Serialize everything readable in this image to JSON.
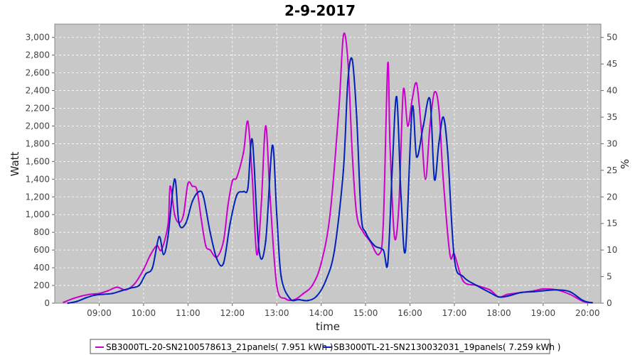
{
  "chart_data": {
    "type": "line",
    "title": "2-9-2017",
    "xlabel": "time",
    "ylabel": "Watt",
    "y2label": "%",
    "ylim": [
      0,
      3150
    ],
    "y2lim": [
      0,
      52.5
    ],
    "yticks": [
      0,
      200,
      400,
      600,
      800,
      1000,
      1200,
      1400,
      1600,
      1800,
      2000,
      2200,
      2400,
      2600,
      2800,
      3000
    ],
    "ytick_labels": [
      "0",
      "200",
      "400",
      "600",
      "800",
      "1,000",
      "1,200",
      "1,400",
      "1,600",
      "1,800",
      "2,000",
      "2,200",
      "2,400",
      "2,600",
      "2,800",
      "3,000"
    ],
    "y2ticks": [
      0,
      5,
      10,
      15,
      20,
      25,
      30,
      35,
      40,
      45,
      50
    ],
    "y2tick_labels": [
      "0",
      "5",
      "10",
      "15",
      "20",
      "25",
      "30",
      "35",
      "40",
      "45",
      "50"
    ],
    "xlim": [
      8.0,
      20.3
    ],
    "xticks": [
      9,
      10,
      11,
      12,
      13,
      14,
      15,
      16,
      17,
      18,
      19,
      20
    ],
    "xtick_labels": [
      "09:00",
      "10:00",
      "11:00",
      "12:00",
      "13:00",
      "14:00",
      "15:00",
      "16:00",
      "17:00",
      "18:00",
      "19:00",
      "20:00"
    ],
    "grid": true,
    "legend_position": "bottom",
    "series": [
      {
        "name": "SB3000TL-20-SN2100578613_21panels( 7.951 kWh )",
        "color": "#cc00cc",
        "x": [
          8.2,
          8.4,
          8.6,
          8.8,
          9.0,
          9.2,
          9.4,
          9.6,
          9.8,
          10.0,
          10.15,
          10.3,
          10.4,
          10.55,
          10.6,
          10.7,
          10.8,
          10.9,
          11.0,
          11.1,
          11.2,
          11.3,
          11.4,
          11.5,
          11.65,
          11.8,
          11.9,
          12.0,
          12.1,
          12.25,
          12.35,
          12.45,
          12.55,
          12.65,
          12.75,
          12.85,
          13.0,
          13.2,
          13.4,
          13.6,
          13.8,
          14.0,
          14.2,
          14.4,
          14.5,
          14.6,
          14.7,
          14.8,
          14.95,
          15.1,
          15.3,
          15.4,
          15.5,
          15.55,
          15.65,
          15.75,
          15.85,
          15.95,
          16.05,
          16.15,
          16.25,
          16.35,
          16.45,
          16.55,
          16.65,
          16.75,
          16.9,
          17.0,
          17.2,
          17.5,
          17.8,
          18.0,
          18.2,
          18.5,
          18.8,
          19.0,
          19.3,
          19.6,
          19.9,
          20.1
        ],
        "y": [
          10,
          50,
          80,
          100,
          110,
          140,
          180,
          150,
          220,
          380,
          540,
          650,
          600,
          880,
          1320,
          1000,
          910,
          1000,
          1350,
          1320,
          1280,
          950,
          650,
          600,
          520,
          700,
          1100,
          1380,
          1420,
          1700,
          2050,
          1400,
          550,
          1100,
          2000,
          1200,
          200,
          50,
          40,
          110,
          200,
          450,
          1000,
          2200,
          3020,
          2750,
          1700,
          1000,
          800,
          700,
          550,
          900,
          2700,
          1800,
          750,
          1100,
          2400,
          2000,
          2300,
          2480,
          2000,
          1400,
          2000,
          2380,
          2200,
          1400,
          550,
          550,
          250,
          200,
          150,
          70,
          100,
          120,
          140,
          160,
          150,
          100,
          20,
          5
        ]
      },
      {
        "name": "SB3000TL-21-SN2130032031_19panels( 7.259 kWh )",
        "color": "#0022bb",
        "x": [
          8.3,
          8.5,
          8.7,
          8.9,
          9.1,
          9.3,
          9.5,
          9.7,
          9.9,
          10.05,
          10.2,
          10.35,
          10.45,
          10.55,
          10.7,
          10.8,
          10.95,
          11.1,
          11.25,
          11.35,
          11.5,
          11.65,
          11.8,
          11.95,
          12.1,
          12.25,
          12.35,
          12.45,
          12.6,
          12.75,
          12.9,
          13.0,
          13.1,
          13.3,
          13.5,
          13.7,
          13.9,
          14.1,
          14.3,
          14.5,
          14.6,
          14.7,
          14.8,
          14.9,
          15.0,
          15.2,
          15.4,
          15.5,
          15.6,
          15.7,
          15.8,
          15.9,
          16.05,
          16.15,
          16.3,
          16.45,
          16.55,
          16.65,
          16.75,
          16.85,
          17.0,
          17.2,
          17.5,
          17.8,
          18.0,
          18.2,
          18.5,
          18.8,
          19.0,
          19.3,
          19.6,
          19.9,
          20.1
        ],
        "y": [
          0,
          20,
          60,
          90,
          100,
          110,
          140,
          170,
          200,
          330,
          400,
          750,
          550,
          750,
          1400,
          900,
          900,
          1150,
          1260,
          1200,
          800,
          500,
          450,
          900,
          1220,
          1260,
          1300,
          1840,
          600,
          700,
          1780,
          1000,
          300,
          50,
          40,
          30,
          80,
          250,
          600,
          1500,
          2500,
          2750,
          2100,
          1000,
          800,
          650,
          600,
          450,
          1500,
          2330,
          1200,
          600,
          2200,
          1650,
          2000,
          2300,
          1400,
          1800,
          2100,
          1700,
          500,
          300,
          200,
          120,
          70,
          80,
          120,
          130,
          140,
          150,
          130,
          30,
          5
        ]
      }
    ]
  }
}
